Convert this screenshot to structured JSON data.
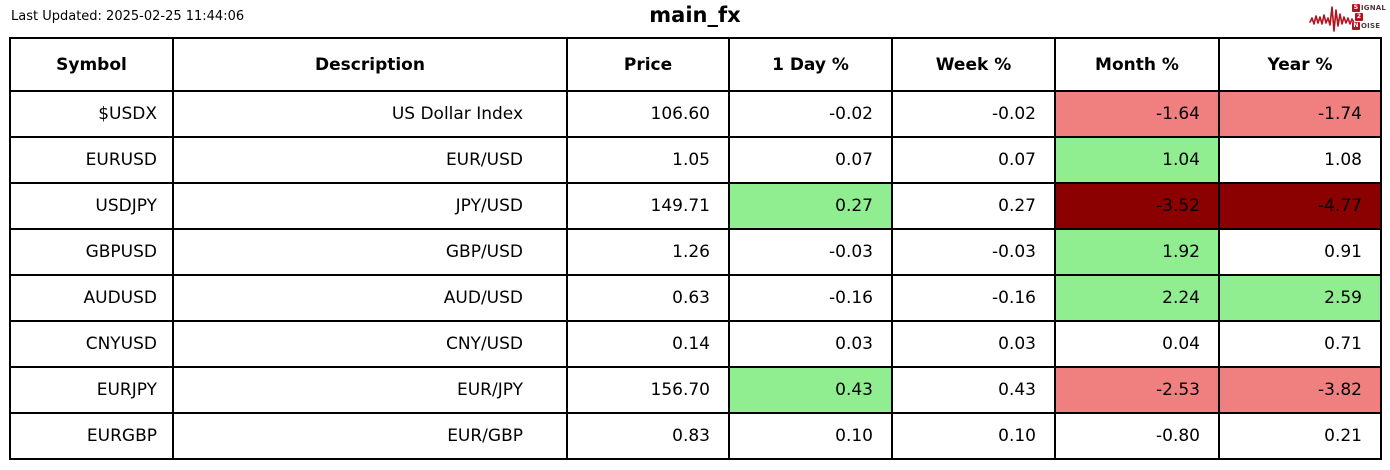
{
  "meta": {
    "last_updated": "Last Updated: 2025-02-25 11:44:06",
    "title": "main_fx"
  },
  "logo": {
    "line1_initial": "S",
    "line1_rest": "IGNAL",
    "line2": "2",
    "line3_initial": "N",
    "line3_rest": "OISE"
  },
  "colors": {
    "green": "#90ee90",
    "red": "#f08080",
    "darkred": "#8b0000",
    "logo_red": "#b5121f"
  },
  "table": {
    "headers": {
      "symbol": "Symbol",
      "description": "Description",
      "price": "Price",
      "day": "1 Day %",
      "week": "Week %",
      "month": "Month %",
      "year": "Year %"
    },
    "rows": [
      {
        "symbol": "$USDX",
        "description": "US Dollar Index",
        "price": "106.60",
        "day": "-0.02",
        "week": "-0.02",
        "month": "-1.64",
        "year": "-1.74",
        "bg": {
          "month": "red",
          "year": "red"
        }
      },
      {
        "symbol": "EURUSD",
        "description": "EUR/USD",
        "price": "1.05",
        "day": "0.07",
        "week": "0.07",
        "month": "1.04",
        "year": "1.08",
        "bg": {
          "month": "green"
        }
      },
      {
        "symbol": "USDJPY",
        "description": "JPY/USD",
        "price": "149.71",
        "day": "0.27",
        "week": "0.27",
        "month": "-3.52",
        "year": "-4.77",
        "bg": {
          "day": "green",
          "month": "darkred",
          "year": "darkred"
        }
      },
      {
        "symbol": "GBPUSD",
        "description": "GBP/USD",
        "price": "1.26",
        "day": "-0.03",
        "week": "-0.03",
        "month": "1.92",
        "year": "0.91",
        "bg": {
          "month": "green"
        }
      },
      {
        "symbol": "AUDUSD",
        "description": "AUD/USD",
        "price": "0.63",
        "day": "-0.16",
        "week": "-0.16",
        "month": "2.24",
        "year": "2.59",
        "bg": {
          "month": "green",
          "year": "green"
        }
      },
      {
        "symbol": "CNYUSD",
        "description": "CNY/USD",
        "price": "0.14",
        "day": "0.03",
        "week": "0.03",
        "month": "0.04",
        "year": "0.71",
        "bg": {}
      },
      {
        "symbol": "EURJPY",
        "description": "EUR/JPY",
        "price": "156.70",
        "day": "0.43",
        "week": "0.43",
        "month": "-2.53",
        "year": "-3.82",
        "bg": {
          "day": "green",
          "month": "red",
          "year": "red"
        }
      },
      {
        "symbol": "EURGBP",
        "description": "EUR/GBP",
        "price": "0.83",
        "day": "0.10",
        "week": "0.10",
        "month": "-0.80",
        "year": "0.21",
        "bg": {}
      }
    ]
  }
}
